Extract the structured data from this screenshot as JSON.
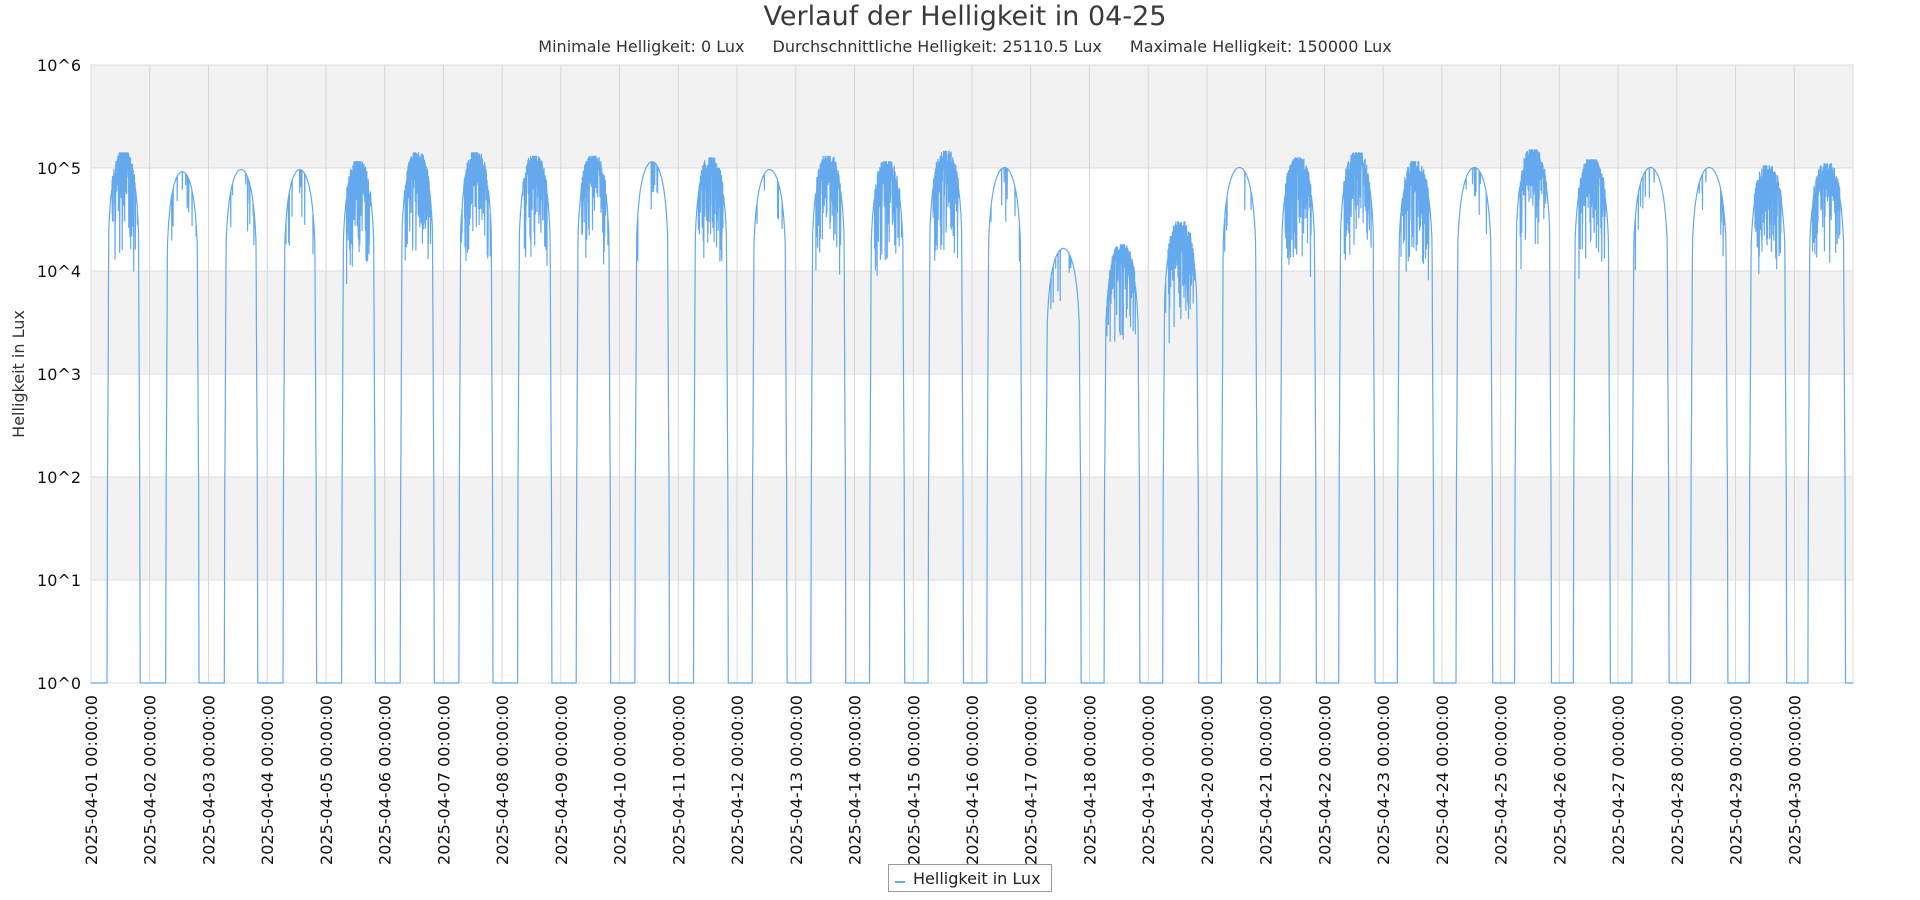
{
  "chart_data": {
    "type": "line",
    "title": "Verlauf der Helligkeit in 04-25",
    "subtitle": [
      "Minimale Helligkeit: 0 Lux",
      "Durchschnittliche Helligkeit: 25110.5 Lux",
      "Maximale Helligkeit: 150000 Lux"
    ],
    "xlabel": "",
    "ylabel": "Helligkeit in Lux",
    "yscale": "log10",
    "ylim": [
      1,
      1000000
    ],
    "yticks": [
      "10^0",
      "10^1",
      "10^2",
      "10^3",
      "10^4",
      "10^5",
      "10^6"
    ],
    "xlim": [
      "2025-04-01 00:00",
      "2025-05-01 00:00"
    ],
    "xticks": [
      "2025-04-01 00:00:00",
      "2025-04-02 00:00:00",
      "2025-04-03 00:00:00",
      "2025-04-04 00:00:00",
      "2025-04-05 00:00:00",
      "2025-04-06 00:00:00",
      "2025-04-07 00:00:00",
      "2025-04-08 00:00:00",
      "2025-04-09 00:00:00",
      "2025-04-10 00:00:00",
      "2025-04-11 00:00:00",
      "2025-04-12 00:00:00",
      "2025-04-13 00:00:00",
      "2025-04-14 00:00:00",
      "2025-04-15 00:00:00",
      "2025-04-16 00:00:00",
      "2025-04-17 00:00:00",
      "2025-04-18 00:00:00",
      "2025-04-19 00:00:00",
      "2025-04-20 00:00:00",
      "2025-04-21 00:00:00",
      "2025-04-22 00:00:00",
      "2025-04-23 00:00:00",
      "2025-04-24 00:00:00",
      "2025-04-25 00:00:00",
      "2025-04-26 00:00:00",
      "2025-04-27 00:00:00",
      "2025-04-28 00:00:00",
      "2025-04-29 00:00:00",
      "2025-04-30 00:00:00"
    ],
    "grid": true,
    "legend_position": "bottom-center",
    "series": [
      {
        "name": "Helligkeit in Lux",
        "color": "#64a8ee",
        "daily": [
          {
            "date": "2025-04-01",
            "sunrise": "06:45",
            "sunset": "19:55",
            "peak_lux": 140000,
            "variable": true
          },
          {
            "date": "2025-04-02",
            "sunrise": "06:43",
            "sunset": "19:57",
            "peak_lux": 100000,
            "variable": false
          },
          {
            "date": "2025-04-03",
            "sunrise": "06:41",
            "sunset": "19:58",
            "peak_lux": 105000,
            "variable": false
          },
          {
            "date": "2025-04-04",
            "sunrise": "06:39",
            "sunset": "20:00",
            "peak_lux": 105000,
            "variable": false
          },
          {
            "date": "2025-04-05",
            "sunrise": "06:37",
            "sunset": "20:02",
            "peak_lux": 115000,
            "variable": true
          },
          {
            "date": "2025-04-06",
            "sunrise": "06:34",
            "sunset": "20:04",
            "peak_lux": 140000,
            "variable": true
          },
          {
            "date": "2025-04-07",
            "sunrise": "06:32",
            "sunset": "20:05",
            "peak_lux": 140000,
            "variable": true
          },
          {
            "date": "2025-04-08",
            "sunrise": "06:30",
            "sunset": "20:07",
            "peak_lux": 130000,
            "variable": true
          },
          {
            "date": "2025-04-09",
            "sunrise": "06:28",
            "sunset": "20:09",
            "peak_lux": 130000,
            "variable": true
          },
          {
            "date": "2025-04-10",
            "sunrise": "06:26",
            "sunset": "20:10",
            "peak_lux": 125000,
            "variable": false
          },
          {
            "date": "2025-04-11",
            "sunrise": "06:24",
            "sunset": "20:12",
            "peak_lux": 125000,
            "variable": true
          },
          {
            "date": "2025-04-12",
            "sunrise": "06:22",
            "sunset": "20:14",
            "peak_lux": 105000,
            "variable": false
          },
          {
            "date": "2025-04-13",
            "sunrise": "06:20",
            "sunset": "20:15",
            "peak_lux": 130000,
            "variable": true
          },
          {
            "date": "2025-04-14",
            "sunrise": "06:18",
            "sunset": "20:17",
            "peak_lux": 115000,
            "variable": true
          },
          {
            "date": "2025-04-15",
            "sunrise": "06:16",
            "sunset": "20:19",
            "peak_lux": 145000,
            "variable": true
          },
          {
            "date": "2025-04-16",
            "sunrise": "06:14",
            "sunset": "20:20",
            "peak_lux": 110000,
            "variable": false
          },
          {
            "date": "2025-04-17",
            "sunrise": "06:12",
            "sunset": "20:22",
            "peak_lux": 18000,
            "variable": false
          },
          {
            "date": "2025-04-18",
            "sunrise": "06:10",
            "sunset": "20:24",
            "peak_lux": 18000,
            "variable": true
          },
          {
            "date": "2025-04-19",
            "sunrise": "06:08",
            "sunset": "20:25",
            "peak_lux": 30000,
            "variable": true
          },
          {
            "date": "2025-04-20",
            "sunrise": "06:06",
            "sunset": "20:27",
            "peak_lux": 110000,
            "variable": false
          },
          {
            "date": "2025-04-21",
            "sunrise": "06:04",
            "sunset": "20:29",
            "peak_lux": 125000,
            "variable": true
          },
          {
            "date": "2025-04-22",
            "sunrise": "06:02",
            "sunset": "20:30",
            "peak_lux": 140000,
            "variable": true
          },
          {
            "date": "2025-04-23",
            "sunrise": "06:00",
            "sunset": "20:32",
            "peak_lux": 115000,
            "variable": true
          },
          {
            "date": "2025-04-24",
            "sunrise": "05:58",
            "sunset": "20:34",
            "peak_lux": 110000,
            "variable": false
          },
          {
            "date": "2025-04-25",
            "sunrise": "05:56",
            "sunset": "20:35",
            "peak_lux": 150000,
            "variable": true
          },
          {
            "date": "2025-04-26",
            "sunrise": "05:54",
            "sunset": "20:37",
            "peak_lux": 120000,
            "variable": true
          },
          {
            "date": "2025-04-27",
            "sunrise": "05:52",
            "sunset": "20:39",
            "peak_lux": 110000,
            "variable": false
          },
          {
            "date": "2025-04-28",
            "sunrise": "05:50",
            "sunset": "20:40",
            "peak_lux": 110000,
            "variable": false
          },
          {
            "date": "2025-04-29",
            "sunrise": "05:48",
            "sunset": "20:42",
            "peak_lux": 105000,
            "variable": true
          },
          {
            "date": "2025-04-30",
            "sunrise": "05:46",
            "sunset": "20:44",
            "peak_lux": 110000,
            "variable": true
          }
        ]
      }
    ]
  }
}
